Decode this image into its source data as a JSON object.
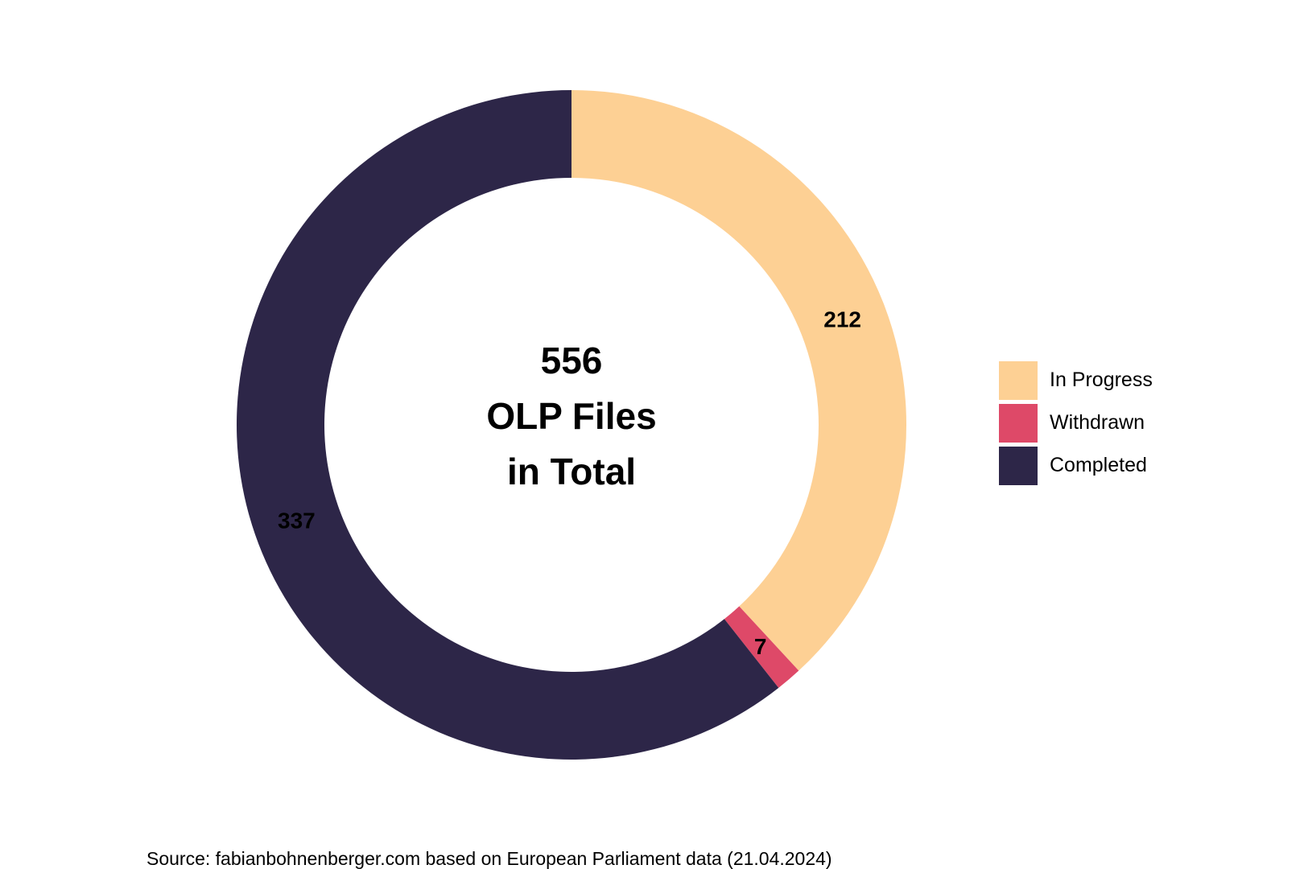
{
  "chart_data": {
    "type": "pie",
    "variant": "donut",
    "categories": [
      "In Progress",
      "Withdrawn",
      "Completed"
    ],
    "values": [
      212,
      7,
      337
    ],
    "colors": [
      "#FDD094",
      "#DE4968",
      "#2D2648"
    ],
    "center_label": [
      "556",
      "OLP Files",
      "in Total"
    ],
    "legend_placement": "right",
    "start_position": "top, clockwise",
    "caption": "Source: fabianbohnenberger.com based on European Parliament data (21.04.2024)"
  }
}
